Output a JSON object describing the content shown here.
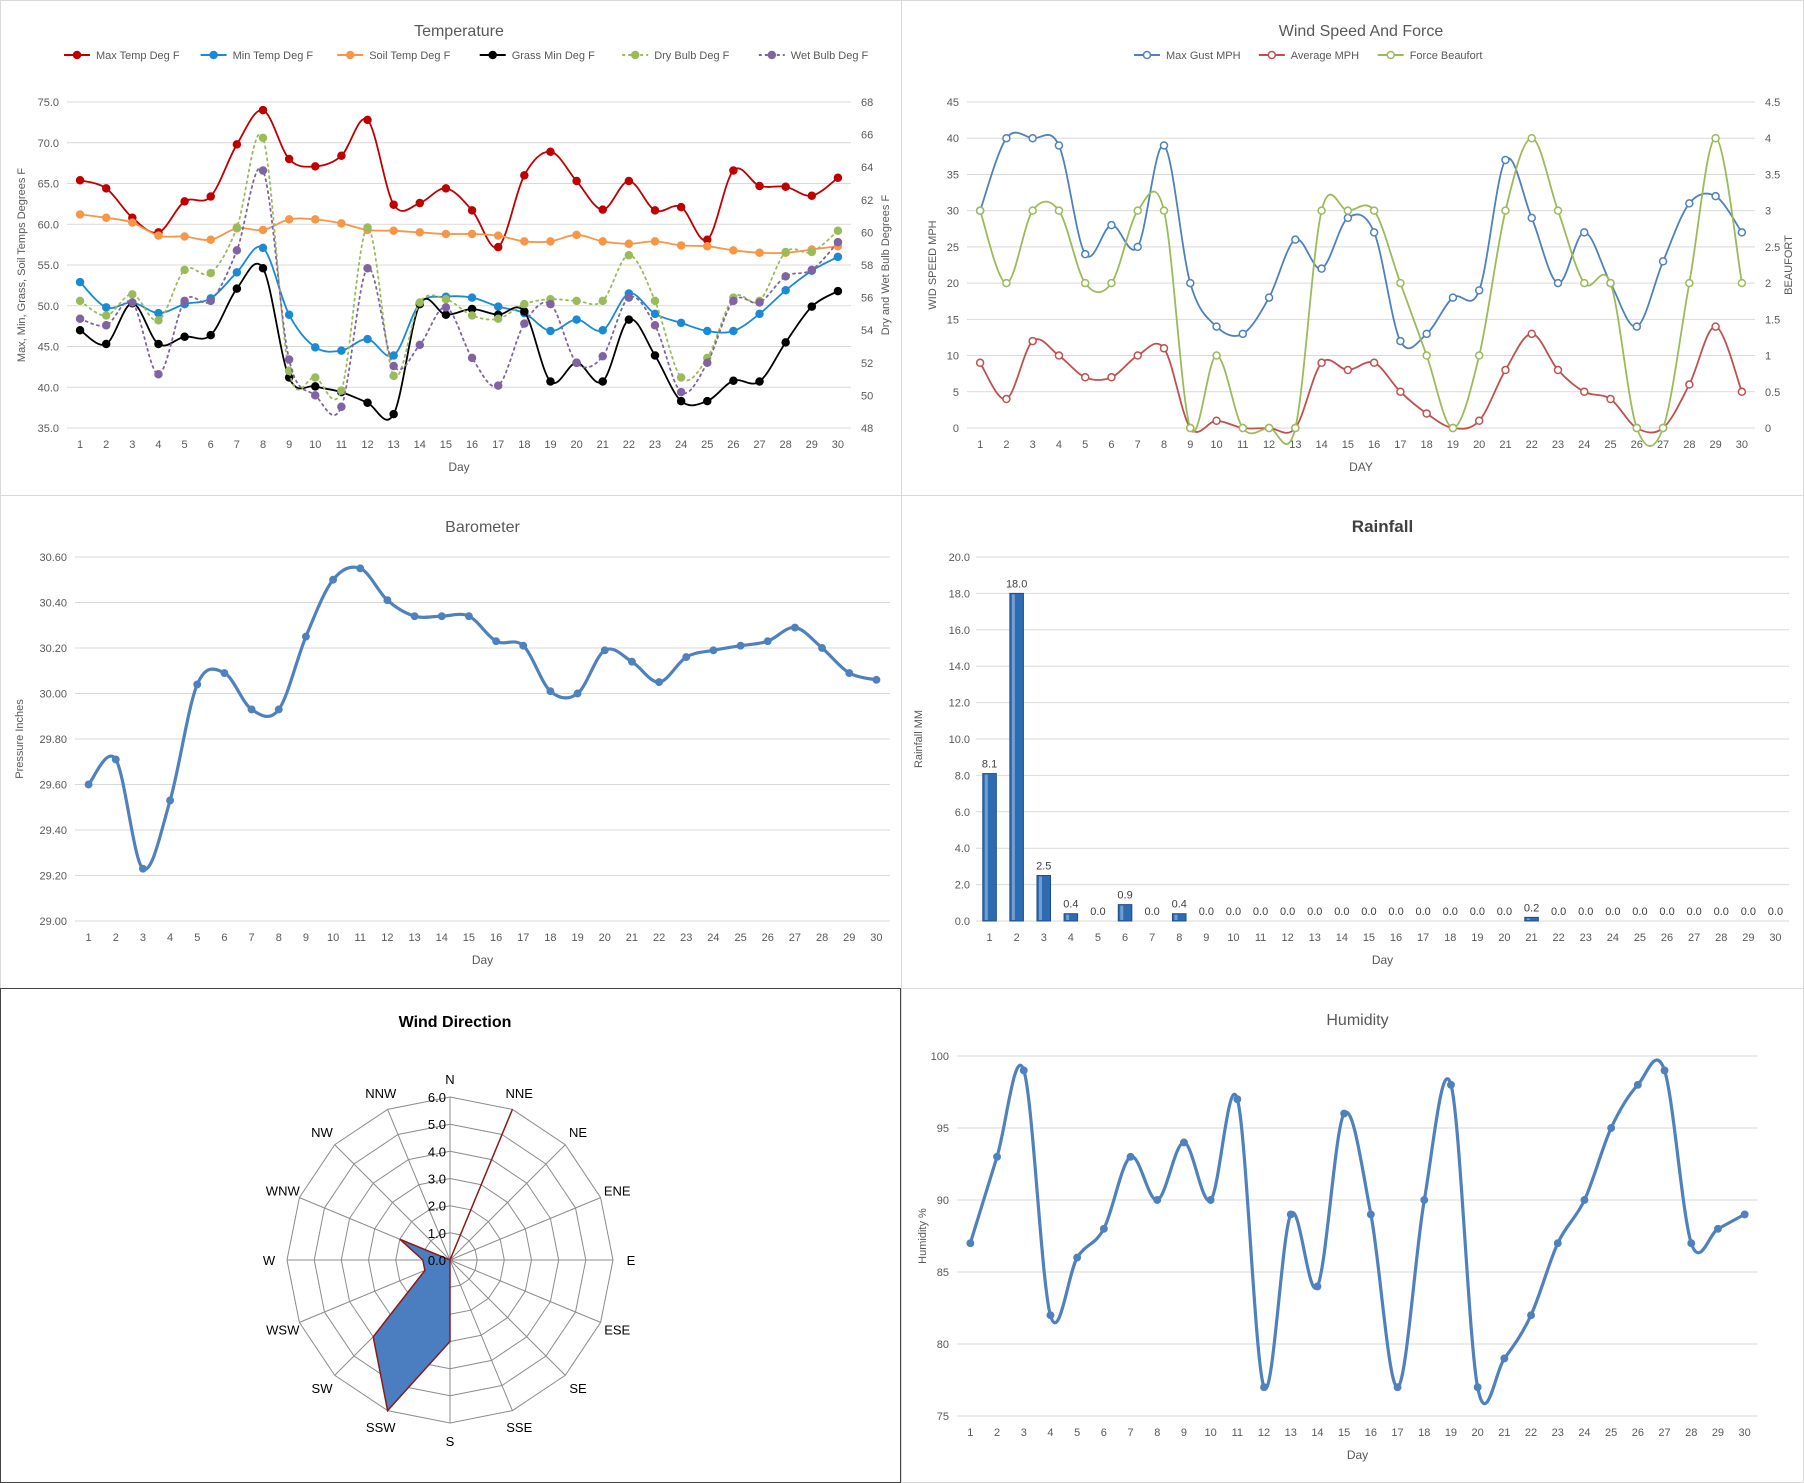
{
  "chart_data": [
    {
      "id": "temperature",
      "type": "line",
      "title": "Temperature",
      "xlabel": "Day",
      "ylabel": "Max, Min, Grass, Soil Temps Degrees F",
      "y2label": "Dry and Wet Bulb Degrees F",
      "ylim": [
        35,
        75
      ],
      "y2lim": [
        48,
        68
      ],
      "yticks": [
        "35.0",
        "40.0",
        "45.0",
        "50.0",
        "55.0",
        "60.0",
        "65.0",
        "70.0",
        "75.0"
      ],
      "y2ticks": [
        "48",
        "50",
        "52",
        "54",
        "56",
        "58",
        "60",
        "62",
        "64",
        "66",
        "68"
      ],
      "x": [
        1,
        2,
        3,
        4,
        5,
        6,
        7,
        8,
        9,
        10,
        11,
        12,
        13,
        14,
        15,
        16,
        17,
        18,
        19,
        20,
        21,
        22,
        23,
        24,
        25,
        26,
        27,
        28,
        29,
        30
      ],
      "legend": "top",
      "grid": true,
      "series": [
        {
          "name": "Max Temp Deg F",
          "color": "#c00000",
          "axis": "left",
          "dash": false,
          "values": [
            65.4,
            64.4,
            60.8,
            59.0,
            62.8,
            63.4,
            69.8,
            74.0,
            68.0,
            67.1,
            68.4,
            72.8,
            62.4,
            62.6,
            64.4,
            61.7,
            57.2,
            66.0,
            68.9,
            65.3,
            61.8,
            65.3,
            61.7,
            62.1,
            58.1,
            66.6,
            64.7,
            64.6,
            63.5,
            65.7
          ]
        },
        {
          "name": "Min Temp Deg F",
          "color": "#1a8ad4",
          "axis": "left",
          "dash": false,
          "values": [
            52.9,
            49.8,
            50.4,
            49.1,
            50.2,
            50.9,
            54.1,
            57.1,
            48.9,
            44.9,
            44.5,
            45.9,
            43.9,
            50.3,
            51.1,
            51.0,
            49.9,
            49.1,
            46.9,
            48.3,
            47.0,
            51.5,
            49.0,
            47.9,
            46.9,
            46.9,
            49.0,
            51.9,
            54.3,
            56.0
          ]
        },
        {
          "name": "Soil Temp Deg F",
          "color": "#f79646",
          "axis": "left",
          "dash": false,
          "values": [
            61.2,
            60.8,
            60.2,
            58.6,
            58.5,
            58.1,
            59.5,
            59.3,
            60.6,
            60.6,
            60.1,
            59.3,
            59.2,
            59.0,
            58.8,
            58.8,
            58.6,
            57.9,
            57.9,
            58.7,
            57.9,
            57.6,
            57.9,
            57.4,
            57.3,
            56.8,
            56.5,
            56.5,
            56.9,
            57.3
          ]
        },
        {
          "name": "Grass Min Deg F",
          "color": "#000000",
          "axis": "left",
          "dash": false,
          "values": [
            47.0,
            45.3,
            50.3,
            45.3,
            46.2,
            46.4,
            52.1,
            54.6,
            41.2,
            40.1,
            39.4,
            38.1,
            36.7,
            50.2,
            48.9,
            49.6,
            48.9,
            49.3,
            40.7,
            43.0,
            40.7,
            48.3,
            43.9,
            38.3,
            38.3,
            40.8,
            40.7,
            45.5,
            49.9,
            51.8
          ]
        },
        {
          "name": "Dry Bulb Deg F",
          "color": "#9bbb59",
          "axis": "right",
          "dash": true,
          "values": [
            55.8,
            54.9,
            56.2,
            54.6,
            57.7,
            57.5,
            60.3,
            65.8,
            51.5,
            51.1,
            50.3,
            60.3,
            51.2,
            55.7,
            55.9,
            54.9,
            54.7,
            55.6,
            55.9,
            55.8,
            55.8,
            58.6,
            55.8,
            51.1,
            52.3,
            56.0,
            55.8,
            58.8,
            58.8,
            60.1
          ]
        },
        {
          "name": "Wet Bulb Deg F",
          "color": "#8064a2",
          "axis": "right",
          "dash": true,
          "values": [
            54.7,
            54.3,
            55.7,
            51.3,
            55.8,
            55.8,
            58.9,
            63.8,
            52.2,
            50.0,
            49.3,
            57.8,
            51.8,
            53.1,
            55.4,
            52.3,
            50.6,
            54.4,
            55.6,
            52.0,
            52.4,
            56.0,
            54.3,
            50.2,
            52.0,
            55.8,
            55.7,
            57.3,
            57.7,
            59.4
          ]
        }
      ]
    },
    {
      "id": "wind-speed",
      "type": "line",
      "title": "Wind Speed And Force",
      "xlabel": "DAY",
      "ylabel": "WID SPEED MPH",
      "y2label": "BEAUFORT",
      "ylim": [
        0,
        45
      ],
      "y2lim": [
        0,
        4.5
      ],
      "yticks": [
        "0",
        "5",
        "10",
        "15",
        "20",
        "25",
        "30",
        "35",
        "40",
        "45"
      ],
      "y2ticks": [
        "0",
        "0.5",
        "1",
        "1.5",
        "2",
        "2.5",
        "3",
        "3.5",
        "4",
        "4.5"
      ],
      "x": [
        1,
        2,
        3,
        4,
        5,
        6,
        7,
        8,
        9,
        10,
        11,
        12,
        13,
        14,
        15,
        16,
        17,
        18,
        19,
        20,
        21,
        22,
        23,
        24,
        25,
        26,
        27,
        28,
        29,
        30
      ],
      "legend": "top",
      "grid": true,
      "series": [
        {
          "name": "Max Gust MPH",
          "color": "#4f81bd",
          "axis": "left",
          "values": [
            30,
            40,
            40,
            39,
            24,
            28,
            25,
            39,
            20,
            14,
            13,
            18,
            26,
            22,
            29,
            27,
            12,
            13,
            18,
            19,
            37,
            29,
            20,
            27,
            20,
            14,
            23,
            31,
            32,
            27
          ]
        },
        {
          "name": "Average MPH",
          "color": "#c0504d",
          "axis": "left",
          "values": [
            9,
            4,
            12,
            10,
            7,
            7,
            10,
            11,
            0,
            1,
            0,
            0,
            0,
            9,
            8,
            9,
            5,
            2,
            0,
            1,
            8,
            13,
            8,
            5,
            4,
            0,
            0,
            6,
            14,
            5
          ]
        },
        {
          "name": "Force Beaufort",
          "color": "#9bbb59",
          "axis": "right",
          "values": [
            3,
            2,
            3,
            3,
            2,
            2,
            3,
            3,
            0,
            1,
            0,
            0,
            0,
            3,
            3,
            3,
            2,
            1,
            0,
            1,
            3,
            4,
            3,
            2,
            2,
            0,
            0,
            2,
            4,
            2
          ]
        }
      ]
    },
    {
      "id": "barometer",
      "type": "line",
      "title": "Barometer",
      "xlabel": "Day",
      "ylabel": "Pressure Inches",
      "ylim": [
        29.0,
        30.6
      ],
      "yticks": [
        "29.00",
        "29.20",
        "29.40",
        "29.60",
        "29.80",
        "30.00",
        "30.20",
        "30.40",
        "30.60"
      ],
      "x": [
        1,
        2,
        3,
        4,
        5,
        6,
        7,
        8,
        9,
        10,
        11,
        12,
        13,
        14,
        15,
        16,
        17,
        18,
        19,
        20,
        21,
        22,
        23,
        24,
        25,
        26,
        27,
        28,
        29,
        30
      ],
      "grid": true,
      "series": [
        {
          "color": "#4f81bd",
          "values": [
            29.6,
            29.71,
            29.23,
            29.53,
            30.04,
            30.09,
            29.93,
            29.93,
            30.25,
            30.5,
            30.55,
            30.41,
            30.34,
            30.34,
            30.34,
            30.23,
            30.21,
            30.01,
            30.0,
            30.19,
            30.14,
            30.05,
            30.16,
            30.19,
            30.21,
            30.23,
            30.29,
            30.2,
            30.09,
            30.06
          ]
        }
      ]
    },
    {
      "id": "rainfall",
      "type": "bar",
      "title": "Rainfall",
      "xlabel": "Day",
      "ylabel": "Rainfall MM",
      "ylim": [
        0,
        20
      ],
      "yticks": [
        "0.0",
        "2.0",
        "4.0",
        "6.0",
        "8.0",
        "10.0",
        "12.0",
        "14.0",
        "16.0",
        "18.0",
        "20.0"
      ],
      "categories": [
        "1",
        "2",
        "3",
        "4",
        "5",
        "6",
        "7",
        "8",
        "9",
        "10",
        "11",
        "12",
        "13",
        "14",
        "15",
        "16",
        "17",
        "18",
        "19",
        "20",
        "21",
        "22",
        "23",
        "24",
        "25",
        "26",
        "27",
        "28",
        "29",
        "30"
      ],
      "values": [
        8.1,
        18.0,
        2.5,
        0.4,
        0.0,
        0.9,
        0.0,
        0.4,
        0.0,
        0.0,
        0.0,
        0.0,
        0.0,
        0.0,
        0.0,
        0.0,
        0.0,
        0.0,
        0.0,
        0.0,
        0.2,
        0.0,
        0.0,
        0.0,
        0.0,
        0.0,
        0.0,
        0.0,
        0.0,
        0.0
      ],
      "labels": [
        "8.1",
        "18.0",
        "2.5",
        "0.4",
        "0.0",
        "0.9",
        "0.0",
        "0.4",
        "0.0",
        "0.0",
        "0.0",
        "0.0",
        "0.0",
        "0.0",
        "0.0",
        "0.0",
        "0.0",
        "0.0",
        "0.0",
        "0.0",
        "0.2",
        "0.0",
        "0.0",
        "0.0",
        "0.0",
        "0.0",
        "0.0",
        "0.0",
        "0.0",
        "0.0"
      ],
      "color": "#2e6bb0",
      "grid": true
    },
    {
      "id": "wind-direction",
      "type": "radar",
      "title": "Wind Direction",
      "rlim": [
        0,
        6
      ],
      "rticks": [
        "0.0",
        "1.0",
        "2.0",
        "3.0",
        "4.0",
        "5.0",
        "6.0"
      ],
      "directions": [
        "N",
        "NNE",
        "NE",
        "ENE",
        "E",
        "ESE",
        "SE",
        "SSE",
        "S",
        "SSW",
        "SW",
        "WSW",
        "W",
        "WNW",
        "NW",
        "NNW"
      ],
      "values": [
        0,
        6,
        0,
        0,
        0,
        0,
        0,
        0,
        3,
        6,
        4,
        1,
        1,
        2,
        0,
        0
      ],
      "fill": "#4a7ec0",
      "stroke": "#8b1a1a"
    },
    {
      "id": "humidity",
      "type": "line",
      "title": "Humidity",
      "xlabel": "Day",
      "ylabel": "Humidity %",
      "ylim": [
        75,
        100
      ],
      "yticks": [
        "75",
        "80",
        "85",
        "90",
        "95",
        "100"
      ],
      "x": [
        1,
        2,
        3,
        4,
        5,
        6,
        7,
        8,
        9,
        10,
        11,
        12,
        13,
        14,
        15,
        16,
        17,
        18,
        19,
        20,
        21,
        22,
        23,
        24,
        25,
        26,
        27,
        28,
        29,
        30
      ],
      "grid": true,
      "series": [
        {
          "color": "#4f81bd",
          "values": [
            87,
            93,
            99,
            82,
            86,
            88,
            93,
            90,
            94,
            90,
            97,
            77,
            89,
            84,
            96,
            89,
            77,
            90,
            98,
            77,
            79,
            82,
            87,
            90,
            95,
            98,
            99,
            87,
            88,
            89
          ]
        }
      ]
    }
  ]
}
